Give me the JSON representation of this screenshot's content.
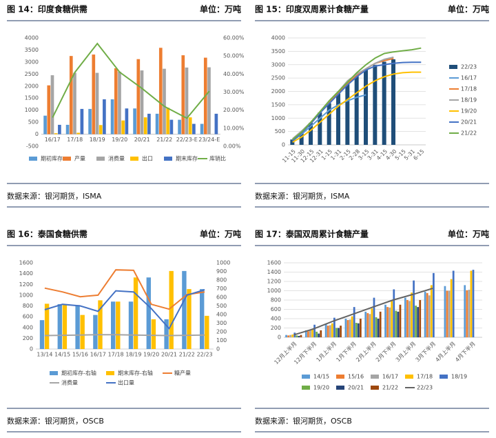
{
  "chart_data": [
    {
      "type": "combo",
      "title": "图 14：印度食糖供需",
      "unit": "单位：万吨",
      "source": "数据来源：银河期货，ISMA",
      "categories": [
        "16/17",
        "17/18",
        "18/19",
        "19/20",
        "20/21",
        "21/22",
        "22/23-E",
        "23/24-E"
      ],
      "ylim": [
        -500,
        4000
      ],
      "yticks": [
        -500,
        0,
        500,
        1000,
        1500,
        2000,
        2500,
        3000,
        3500,
        4000
      ],
      "y2lim": [
        0,
        60
      ],
      "y2ticks": [
        {
          "value": 0,
          "label": "0.00%"
        },
        {
          "value": 10,
          "label": "10.00%"
        },
        {
          "value": 20,
          "label": "20.00%"
        },
        {
          "value": 30,
          "label": "30.00%"
        },
        {
          "value": 40,
          "label": "40.00%"
        },
        {
          "value": 50,
          "label": "50.00%"
        },
        {
          "value": 60,
          "label": "60.00%"
        }
      ],
      "grid": false,
      "series": [
        {
          "name": "期初库存",
          "type": "bar",
          "color": "#5b9bd5",
          "values": [
            770,
            390,
            1050,
            1450,
            1070,
            850,
            600,
            430
          ]
        },
        {
          "name": "产量",
          "type": "bar",
          "color": "#ed7d31",
          "values": [
            2030,
            3250,
            3310,
            2740,
            3120,
            3590,
            3280,
            3180
          ]
        },
        {
          "name": "消费量",
          "type": "bar",
          "color": "#a5a5a5",
          "values": [
            2450,
            2550,
            2550,
            2600,
            2650,
            2720,
            2770,
            2780
          ]
        },
        {
          "name": "出口",
          "type": "bar",
          "color": "#ffc000",
          "values": [
            40,
            60,
            380,
            570,
            700,
            1100,
            700,
            0
          ]
        },
        {
          "name": "期末库存",
          "type": "bar",
          "color": "#4472c4",
          "values": [
            390,
            1050,
            1450,
            1070,
            850,
            600,
            430,
            850
          ]
        },
        {
          "name": "库销比",
          "type": "line",
          "axis": "y2",
          "color": "#70ad47",
          "values": [
            15.9,
            41,
            56.9,
            41,
            32,
            22,
            15.5,
            30.5
          ]
        }
      ]
    },
    {
      "type": "combo",
      "title": "图 15：印度双周累计食糖产量",
      "unit": "单位：万吨",
      "source": "数据来源：银河期货，ISMA",
      "categories": [
        "11-15",
        "11-30",
        "12-15",
        "12-31",
        "1-15",
        "1-31",
        "2-15",
        "2-28",
        "3-15",
        "3-31",
        "4-15",
        "4-30",
        "5-15",
        "5-31",
        "6-15"
      ],
      "ylim": [
        0,
        4000
      ],
      "yticks": [
        0,
        500,
        1000,
        1500,
        2000,
        2500,
        3000,
        3500,
        4000
      ],
      "grid": true,
      "series": [
        {
          "name": "22/23",
          "type": "bar",
          "color": "#1f4e79",
          "values": [
            200,
            470,
            820,
            1210,
            1560,
            1930,
            2280,
            2580,
            2820,
            2990,
            3110,
            3200,
            null,
            null,
            null
          ]
        },
        {
          "name": "16/17",
          "type": "line",
          "color": "#5b9bd5",
          "values": [
            150,
            400,
            700,
            1000,
            1300,
            1500,
            1650,
            1780,
            1870,
            null,
            null,
            null,
            null,
            null,
            null
          ]
        },
        {
          "name": "17/18",
          "type": "line",
          "color": "#ed7d31",
          "values": [
            200,
            500,
            800,
            1200,
            1600,
            1950,
            2300,
            2600,
            2850,
            3050,
            3150,
            3230,
            null,
            null,
            null
          ]
        },
        {
          "name": "18/19",
          "type": "line",
          "color": "#a5a5a5",
          "values": [
            230,
            520,
            850,
            1250,
            1650,
            2000,
            2400,
            2650,
            2850,
            3050,
            3200,
            3280,
            null,
            null,
            null
          ]
        },
        {
          "name": "19/20",
          "type": "line",
          "color": "#ffc000",
          "values": [
            100,
            300,
            550,
            850,
            1150,
            1450,
            1700,
            1950,
            2200,
            2400,
            2550,
            2650,
            2700,
            2720,
            2720
          ]
        },
        {
          "name": "20/21",
          "type": "line",
          "color": "#4472c4",
          "values": [
            150,
            450,
            800,
            1200,
            1550,
            1900,
            2250,
            2550,
            2800,
            2950,
            3000,
            3050,
            3080,
            3090,
            3090
          ]
        },
        {
          "name": "21/22",
          "type": "line",
          "color": "#70ad47",
          "values": [
            200,
            480,
            850,
            1250,
            1650,
            2000,
            2350,
            2700,
            3000,
            3250,
            3420,
            3480,
            3520,
            3560,
            3620
          ]
        }
      ]
    },
    {
      "type": "combo",
      "title": "图 16：泰国食糖供需",
      "unit": "单位：万吨",
      "source": "数据来源：银河期货，OSCB",
      "categories": [
        "13/14",
        "14/15",
        "15/16",
        "16/17",
        "17/18",
        "18/19",
        "19/20",
        "20/21",
        "21/22",
        "22/23"
      ],
      "ylim": [
        0,
        1600
      ],
      "yticks": [
        0,
        200,
        400,
        600,
        800,
        1000,
        1200,
        1400,
        1600
      ],
      "y2lim": [
        0,
        1000
      ],
      "y2ticks": [
        0,
        100,
        200,
        300,
        400,
        500,
        600,
        700,
        800,
        900,
        1000
      ],
      "grid": false,
      "series": [
        {
          "name": "期初库存-右轴",
          "type": "bar",
          "axis": "y2",
          "color": "#5b9bd5",
          "values": [
            335,
            520,
            510,
            395,
            550,
            550,
            830,
            345,
            905,
            695
          ]
        },
        {
          "name": "期末库存-右轴",
          "type": "bar",
          "axis": "y2",
          "color": "#ffc000",
          "values": [
            525,
            510,
            395,
            565,
            550,
            830,
            345,
            905,
            695,
            385
          ]
        },
        {
          "name": "糖产量",
          "type": "line",
          "color": "#ed7d31",
          "values": [
            1130,
            1060,
            970,
            1000,
            1470,
            1460,
            830,
            740,
            1010,
            1060
          ]
        },
        {
          "name": "消费量",
          "type": "line",
          "color": "#a5a5a5",
          "values": [
            250,
            255,
            260,
            265,
            265,
            260,
            255,
            250,
            255,
            260
          ]
        },
        {
          "name": "出口量",
          "type": "line",
          "color": "#4472c4",
          "values": [
            730,
            830,
            800,
            700,
            1080,
            1060,
            750,
            380,
            1000,
            1100
          ]
        }
      ]
    },
    {
      "type": "combo",
      "title": "图 17：泰国双周累计食糖产量",
      "unit": "单位：万吨",
      "source": "数据来源：银河期货，OSCB",
      "categories": [
        "12月上半月",
        "12月下半月",
        "1月上半月",
        "1月下半月",
        "2月上半月",
        "2月下半月",
        "3月上半月",
        "3月下半月",
        "4月上半月",
        "4月下半月"
      ],
      "ylim": [
        0,
        1600
      ],
      "yticks": [
        0,
        200,
        400,
        600,
        800,
        1000,
        1200,
        1400,
        1600
      ],
      "grid": true,
      "series": [
        {
          "name": "14/15",
          "type": "bar",
          "color": "#5b9bd5",
          "values": [
            50,
            150,
            280,
            400,
            550,
            700,
            850,
            980,
            1100,
            1120
          ]
        },
        {
          "name": "15/16",
          "type": "bar",
          "color": "#ed7d31",
          "values": [
            40,
            130,
            250,
            370,
            520,
            650,
            800,
            950,
            1000,
            1010
          ]
        },
        {
          "name": "16/17",
          "type": "bar",
          "color": "#a5a5a5",
          "values": [
            50,
            150,
            260,
            380,
            500,
            640,
            780,
            900,
            1000,
            1020
          ]
        },
        {
          "name": "17/18",
          "type": "bar",
          "color": "#ffc000",
          "values": [
            60,
            170,
            300,
            450,
            620,
            780,
            960,
            1120,
            1250,
            1430
          ]
        },
        {
          "name": "18/19",
          "type": "bar",
          "color": "#4472c4",
          "values": [
            100,
            270,
            420,
            650,
            850,
            1030,
            1220,
            1380,
            1430,
            1450
          ]
        },
        {
          "name": "19/20",
          "type": "bar",
          "color": "#70ad47",
          "values": [
            40,
            120,
            200,
            310,
            430,
            570,
            680,
            null,
            null,
            null
          ]
        },
        {
          "name": "20/21",
          "type": "bar",
          "color": "#264478",
          "values": [
            30,
            80,
            200,
            300,
            400,
            550,
            650,
            null,
            null,
            null
          ]
        },
        {
          "name": "21/22",
          "type": "bar",
          "color": "#9e480e",
          "values": [
            50,
            150,
            250,
            400,
            550,
            700,
            800,
            null,
            null,
            null
          ]
        },
        {
          "name": "22/23",
          "type": "line",
          "color": "#636363",
          "values": [
            50,
            180,
            350,
            500,
            650,
            800,
            920,
            1050,
            null,
            null
          ]
        }
      ]
    }
  ]
}
